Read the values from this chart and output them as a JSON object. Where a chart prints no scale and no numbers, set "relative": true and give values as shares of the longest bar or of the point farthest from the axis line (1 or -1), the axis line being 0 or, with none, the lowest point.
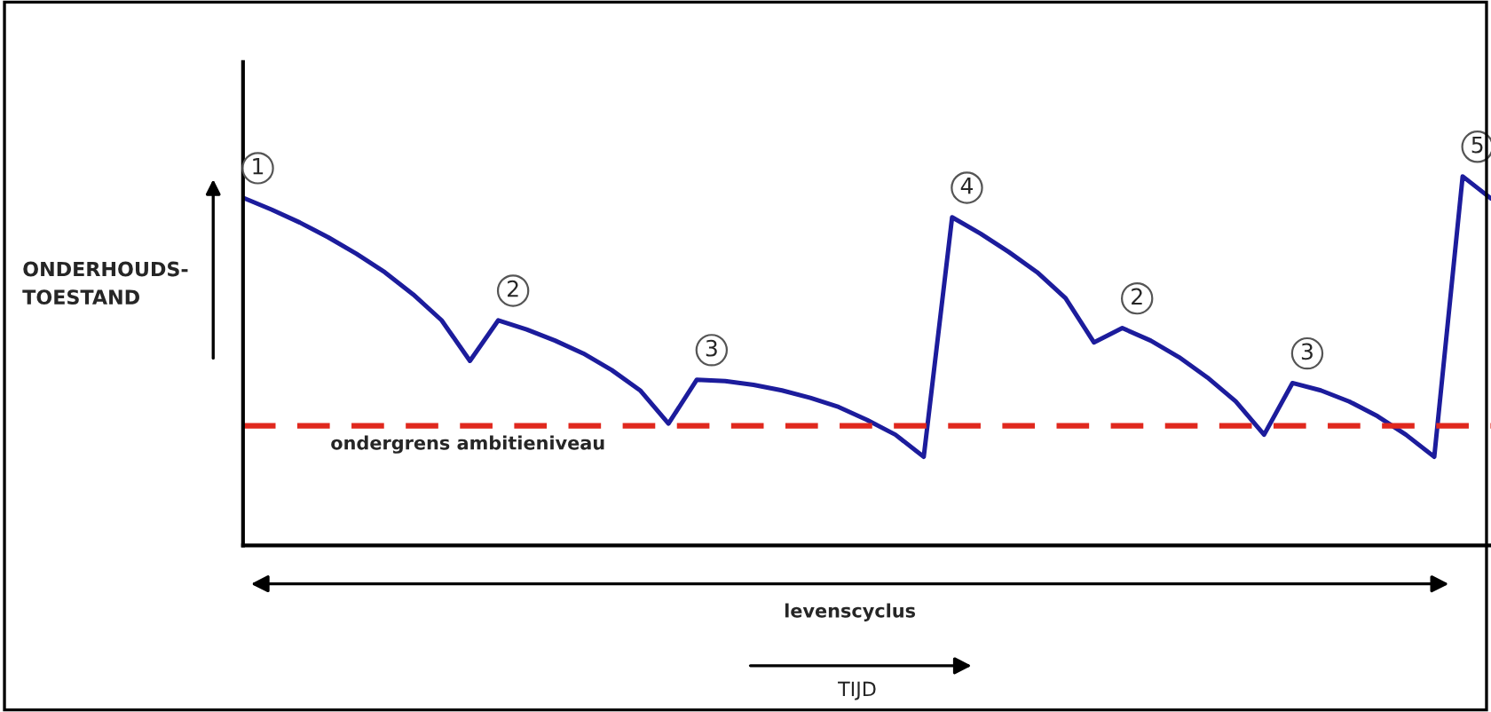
{
  "chart_data": {
    "type": "line",
    "relative": true,
    "ylabel": "ONDERHOUDS-\nTOESTAND",
    "categories": [
      null,
      null,
      null,
      null,
      null,
      null,
      null,
      null,
      null,
      null,
      null,
      null,
      null,
      null,
      null,
      null,
      null,
      null,
      null,
      null,
      null,
      null,
      null,
      null,
      null,
      null,
      null,
      null,
      null,
      null,
      null,
      null,
      null,
      null,
      null,
      null,
      null,
      null,
      null,
      null,
      null,
      null,
      null,
      null,
      null
    ],
    "series": [
      {
        "color": "#1c1c9c",
        "values": [
          0.942,
          0.91,
          0.875,
          0.835,
          0.79,
          0.74,
          0.68,
          0.61,
          0.5,
          0.61,
          0.585,
          0.555,
          0.52,
          0.475,
          0.42,
          0.33,
          0.449,
          0.445,
          0.435,
          0.42,
          0.4,
          0.375,
          0.34,
          0.3,
          0.24,
          0.889,
          0.845,
          0.795,
          0.74,
          0.67,
          0.55,
          0.589,
          0.555,
          0.51,
          0.455,
          0.39,
          0.3,
          0.44,
          0.42,
          0.39,
          0.35,
          0.3,
          0.24,
          1.0,
          0.94
        ]
      }
    ],
    "ref_lines": [
      {
        "axis": "y",
        "value": 0.324,
        "label": "ondergrens ambitieniveau",
        "color": "#e0281e",
        "line_style": "dashed"
      }
    ],
    "annotations": [
      "1",
      "2",
      "3",
      "4",
      "2",
      "3",
      "5",
      "levenscyclus",
      "TIJD"
    ],
    "marker": "none",
    "line_style": "solid",
    "grid": false
  }
}
